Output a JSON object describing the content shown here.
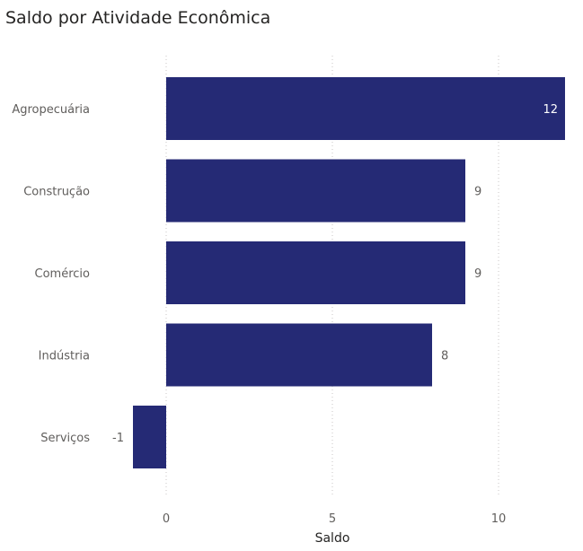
{
  "title": "Saldo por Atividade Econômica",
  "chart_data": {
    "type": "bar",
    "orientation": "horizontal",
    "title": "Saldo por Atividade Econômica",
    "xlabel": "Saldo",
    "ylabel": "",
    "categories": [
      "Agropecuária",
      "Construção",
      "Comércio",
      "Indústria",
      "Serviços"
    ],
    "values": [
      12,
      9,
      9,
      8,
      -1
    ],
    "xlim": [
      -1,
      12
    ],
    "xticks": [
      0,
      5,
      10
    ],
    "grid": true,
    "legend": "none",
    "bar_color": "#252a75",
    "label_color_inside": "#ffffff",
    "label_color_outside": "#605e5c"
  }
}
